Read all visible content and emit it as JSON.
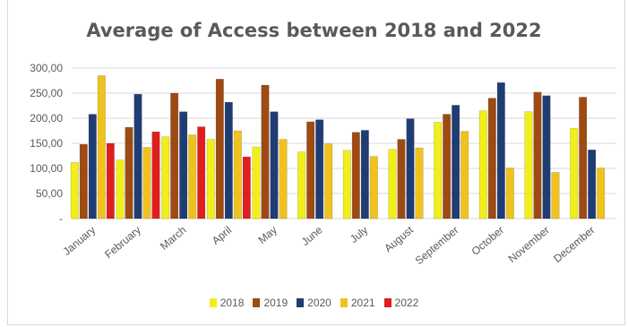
{
  "chart_data": {
    "type": "bar",
    "title": "Average of Access between 2018 and 2022",
    "xlabel": "",
    "ylabel": "",
    "ylim": [
      0,
      300
    ],
    "y_ticks": [
      {
        "value": 0,
        "label": "-"
      },
      {
        "value": 50,
        "label": "50,00"
      },
      {
        "value": 100,
        "label": "100,00"
      },
      {
        "value": 150,
        "label": "150,00"
      },
      {
        "value": 200,
        "label": "200,00"
      },
      {
        "value": 250,
        "label": "250,00"
      },
      {
        "value": 300,
        "label": "300,00"
      }
    ],
    "grid": true,
    "legend_position": "bottom",
    "categories": [
      "January",
      "February",
      "March",
      "April",
      "May",
      "June",
      "July",
      "August",
      "September",
      "October",
      "November",
      "December"
    ],
    "series": [
      {
        "name": "2018",
        "color": "#f2ee1a",
        "values": [
          112,
          117,
          163,
          158,
          143,
          133,
          136,
          138,
          192,
          215,
          213,
          180
        ]
      },
      {
        "name": "2019",
        "color": "#9e4a12",
        "values": [
          148,
          182,
          250,
          278,
          266,
          193,
          172,
          158,
          208,
          240,
          252,
          242
        ]
      },
      {
        "name": "2020",
        "color": "#1f3c73",
        "values": [
          208,
          248,
          213,
          232,
          213,
          197,
          176,
          199,
          226,
          271,
          245,
          137
        ]
      },
      {
        "name": "2021",
        "color": "#f0c21e",
        "values": [
          285,
          142,
          167,
          175,
          158,
          149,
          124,
          141,
          174,
          101,
          92,
          101
        ]
      },
      {
        "name": "2022",
        "color": "#e01e1e",
        "values": [
          150,
          173,
          183,
          123,
          null,
          null,
          null,
          null,
          null,
          null,
          null,
          null
        ]
      }
    ]
  }
}
